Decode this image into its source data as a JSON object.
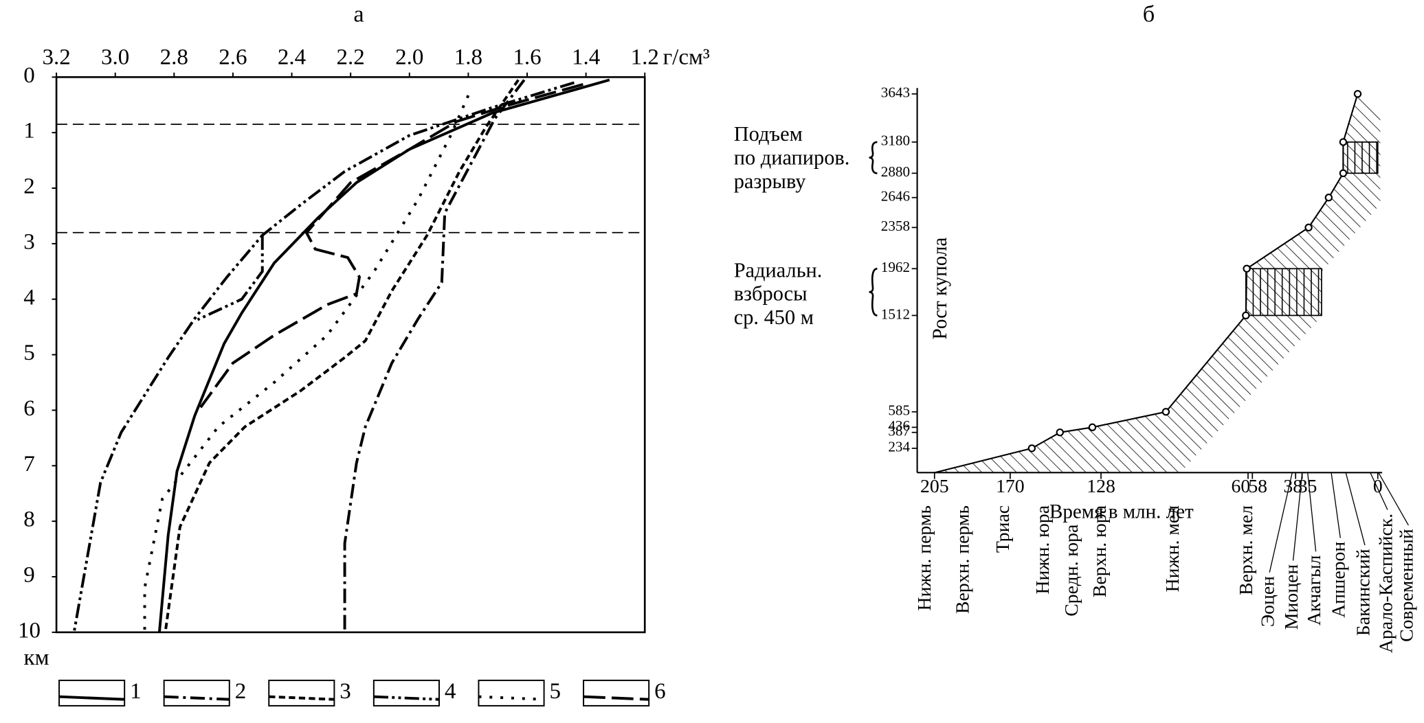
{
  "chart_data": [
    {
      "type": "line",
      "title": "а",
      "x_label": "г/см³",
      "y_label": "км",
      "xlim": [
        3.2,
        1.2
      ],
      "xticks": [
        3.2,
        {
          "value": 3,
          "label": "3.0"
        },
        2.8,
        2.6,
        2.4,
        2.2,
        {
          "value": 2,
          "label": "2.0"
        },
        1.8,
        1.6,
        1.4,
        1.2
      ],
      "ylim": [
        0,
        10
      ],
      "yticks": [
        0,
        1,
        2,
        3,
        4,
        5,
        6,
        7,
        8,
        9,
        10
      ],
      "hlines": [
        0.85,
        2.8
      ],
      "series": [
        {
          "name": "1",
          "style": "solid",
          "color": "#000",
          "x": [
            1.32,
            1.72,
            2.0,
            2.18,
            2.31,
            2.46,
            2.57,
            2.63,
            2.73,
            2.79,
            2.82,
            2.85
          ],
          "y": [
            0.05,
            0.65,
            1.3,
            1.9,
            2.53,
            3.35,
            4.25,
            4.8,
            6.1,
            7.1,
            8.25,
            10
          ]
        },
        {
          "name": "2",
          "style": "dashdot",
          "color": "#000",
          "x": [
            1.61,
            1.71,
            1.88,
            1.89,
            1.97,
            2.06,
            2.15,
            2.18,
            2.22,
            2.22
          ],
          "y": [
            0.05,
            0.75,
            2.45,
            3.7,
            4.35,
            5.15,
            6.3,
            6.95,
            8.4,
            10
          ]
        },
        {
          "name": "3",
          "style": "dashed",
          "color": "#000",
          "x": [
            1.63,
            1.74,
            1.83,
            1.94,
            2.06,
            2.15,
            2.22,
            2.37,
            2.56,
            2.68,
            2.78,
            2.83
          ],
          "y": [
            0.05,
            0.9,
            1.7,
            2.85,
            3.85,
            4.75,
            5.05,
            5.65,
            6.3,
            6.95,
            8.1,
            10
          ]
        },
        {
          "name": "4",
          "style": "dashdotdot",
          "color": "#000",
          "x": [
            1.44,
            1.72,
            2.0,
            2.22,
            2.37,
            2.5,
            2.62,
            2.73,
            2.82,
            2.98,
            3.05,
            3.14,
            null,
            2.5,
            2.5,
            2.57,
            2.72
          ],
          "y": [
            0.1,
            0.55,
            1.05,
            1.7,
            2.3,
            2.85,
            3.6,
            4.35,
            5.05,
            6.4,
            7.3,
            10,
            null,
            2.85,
            3.5,
            4.0,
            4.37
          ]
        },
        {
          "name": "5",
          "style": "dotted",
          "color": "#000",
          "x": [
            1.8,
            1.86,
            1.97,
            2.12,
            2.28,
            2.46,
            2.65,
            2.84,
            2.9,
            2.9
          ],
          "y": [
            0.33,
            1.05,
            2.2,
            3.5,
            4.65,
            5.5,
            6.3,
            7.6,
            9.2,
            10
          ]
        },
        {
          "name": "6",
          "style": "longdash",
          "color": "#000",
          "x": [
            1.41,
            1.66,
            1.84,
            2.0,
            2.2,
            2.35,
            2.32,
            2.21,
            2.17,
            2.18,
            2.28,
            2.46,
            2.6,
            2.71
          ],
          "y": [
            0.13,
            0.5,
            0.8,
            1.3,
            1.9,
            2.8,
            3.1,
            3.25,
            3.6,
            3.9,
            4.1,
            4.65,
            5.15,
            5.95
          ]
        }
      ]
    },
    {
      "type": "band",
      "title": "б",
      "x_label": "Время в млн. лет",
      "y_label": "Рост купола",
      "xlim": [
        213,
        -2
      ],
      "xticks": [
        205,
        170,
        128,
        60,
        58,
        38,
        35,
        0
      ],
      "ylim": [
        0,
        3700
      ],
      "yticks": [
        234,
        387,
        436,
        585,
        1512,
        1962,
        2358,
        2646,
        2880,
        3180,
        3643
      ],
      "x": [
        205,
        160,
        147,
        132,
        98,
        61,
        60.6,
        32,
        22.7,
        16,
        16,
        9.3
      ],
      "values": [
        0,
        234,
        387,
        436,
        585,
        1512,
        1962,
        2358,
        2646,
        2880,
        3180,
        3643
      ],
      "color": "#000",
      "intervals": [
        {
          "lines": [
            "Подъем",
            "по диапиров.",
            "разрыву"
          ],
          "from": 2880,
          "to": 3180,
          "x": [
            16,
            0
          ]
        },
        {
          "lines": [
            "Радиальн.",
            "взбросы",
            "ср. 450 м"
          ],
          "from": 1512,
          "to": 1962,
          "x": [
            61,
            26
          ]
        }
      ],
      "periods": [
        "Нижн. пермь",
        "Верхн. пермь",
        "Триас",
        "Нижн. юра",
        "Средн. юра",
        "Верхн. юра",
        "Нижн. мел",
        "Верхн. мел",
        "Эоцен",
        "Миоцен",
        "Акчагыл",
        "Апшерон",
        "Бакинский",
        "Арало-Каспийск.",
        "Современный"
      ]
    }
  ]
}
